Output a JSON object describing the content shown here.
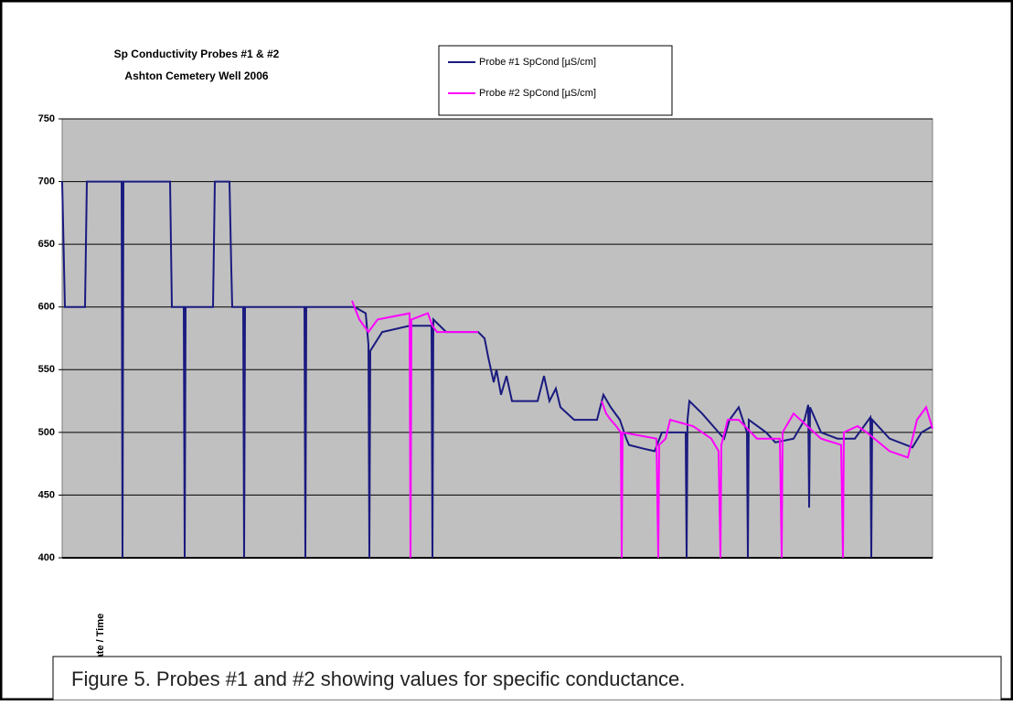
{
  "chart_data": {
    "type": "line",
    "title": "Sp Conductivity Probes #1 & #2",
    "subtitle": "Ashton Cemetery Well 2006",
    "x_label": "Date / Time",
    "caption": "Figure 5. Probes #1 and #2 showing values for specific conductance.",
    "ylim": [
      400,
      750
    ],
    "yticks": [
      400,
      450,
      500,
      550,
      600,
      650,
      700,
      750
    ],
    "xlim": [
      0,
      952
    ],
    "grid": true,
    "plot_background": "#c0c0c0",
    "series": [
      {
        "name": "Probe #1 SpCond [µS/cm]",
        "color": "#1a1a80",
        "x": [
          0,
          3,
          25,
          27,
          65,
          66,
          67,
          118,
          120,
          133,
          134,
          135,
          165,
          167,
          183,
          185,
          186,
          198,
          199,
          200,
          265,
          266,
          267,
          320,
          332,
          335,
          336,
          337,
          350,
          380,
          404,
          405,
          406,
          420,
          455,
          462,
          466,
          472,
          475,
          480,
          486,
          492,
          520,
          527,
          533,
          540,
          545,
          560,
          585,
          592,
          600,
          610,
          617,
          620,
          636,
          648,
          656,
          670,
          682,
          683,
          684,
          686,
          700,
          718,
          724,
          730,
          740,
          749,
          750,
          751,
          770,
          780,
          800,
          812,
          816,
          817,
          818,
          830,
          848,
          867,
          884,
          885,
          886,
          905,
          930,
          940,
          952
        ],
        "values": [
          700,
          600,
          600,
          700,
          700,
          400,
          700,
          700,
          600,
          600,
          400,
          600,
          600,
          700,
          700,
          630,
          600,
          600,
          400,
          600,
          600,
          400,
          600,
          600,
          595,
          570,
          400,
          565,
          580,
          585,
          585,
          400,
          590,
          580,
          580,
          575,
          560,
          540,
          550,
          530,
          545,
          525,
          525,
          545,
          525,
          535,
          520,
          510,
          510,
          530,
          520,
          510,
          495,
          490,
          487,
          485,
          500,
          500,
          500,
          400,
          510,
          525,
          515,
          500,
          495,
          510,
          520,
          500,
          400,
          510,
          500,
          492,
          495,
          510,
          522,
          440,
          520,
          500,
          495,
          495,
          512,
          400,
          510,
          495,
          488,
          500,
          505
        ]
      },
      {
        "name": "Probe #2 SpCond [µS/cm]",
        "color": "#ff00ff",
        "x": [
          317,
          325,
          335,
          345,
          380,
          381,
          382,
          400,
          405,
          410,
          452,
          455,
          500,
          590,
          595,
          600,
          606,
          611,
          612,
          613,
          650,
          652,
          653,
          660,
          665,
          690,
          710,
          718,
          720,
          721,
          728,
          740,
          760,
          785,
          787,
          788,
          800,
          815,
          830,
          852,
          854,
          855,
          870,
          880,
          905,
          925,
          935,
          945,
          952
        ],
        "values": [
          605,
          590,
          580,
          590,
          595,
          400,
          590,
          595,
          585,
          580,
          580,
          580,
          null,
          525,
          515,
          510,
          505,
          500,
          400,
          500,
          495,
          400,
          490,
          495,
          510,
          505,
          495,
          485,
          400,
          490,
          510,
          510,
          495,
          495,
          400,
          500,
          515,
          505,
          495,
          490,
          400,
          500,
          505,
          500,
          485,
          480,
          510,
          520,
          503
        ]
      }
    ],
    "legend": "top"
  }
}
